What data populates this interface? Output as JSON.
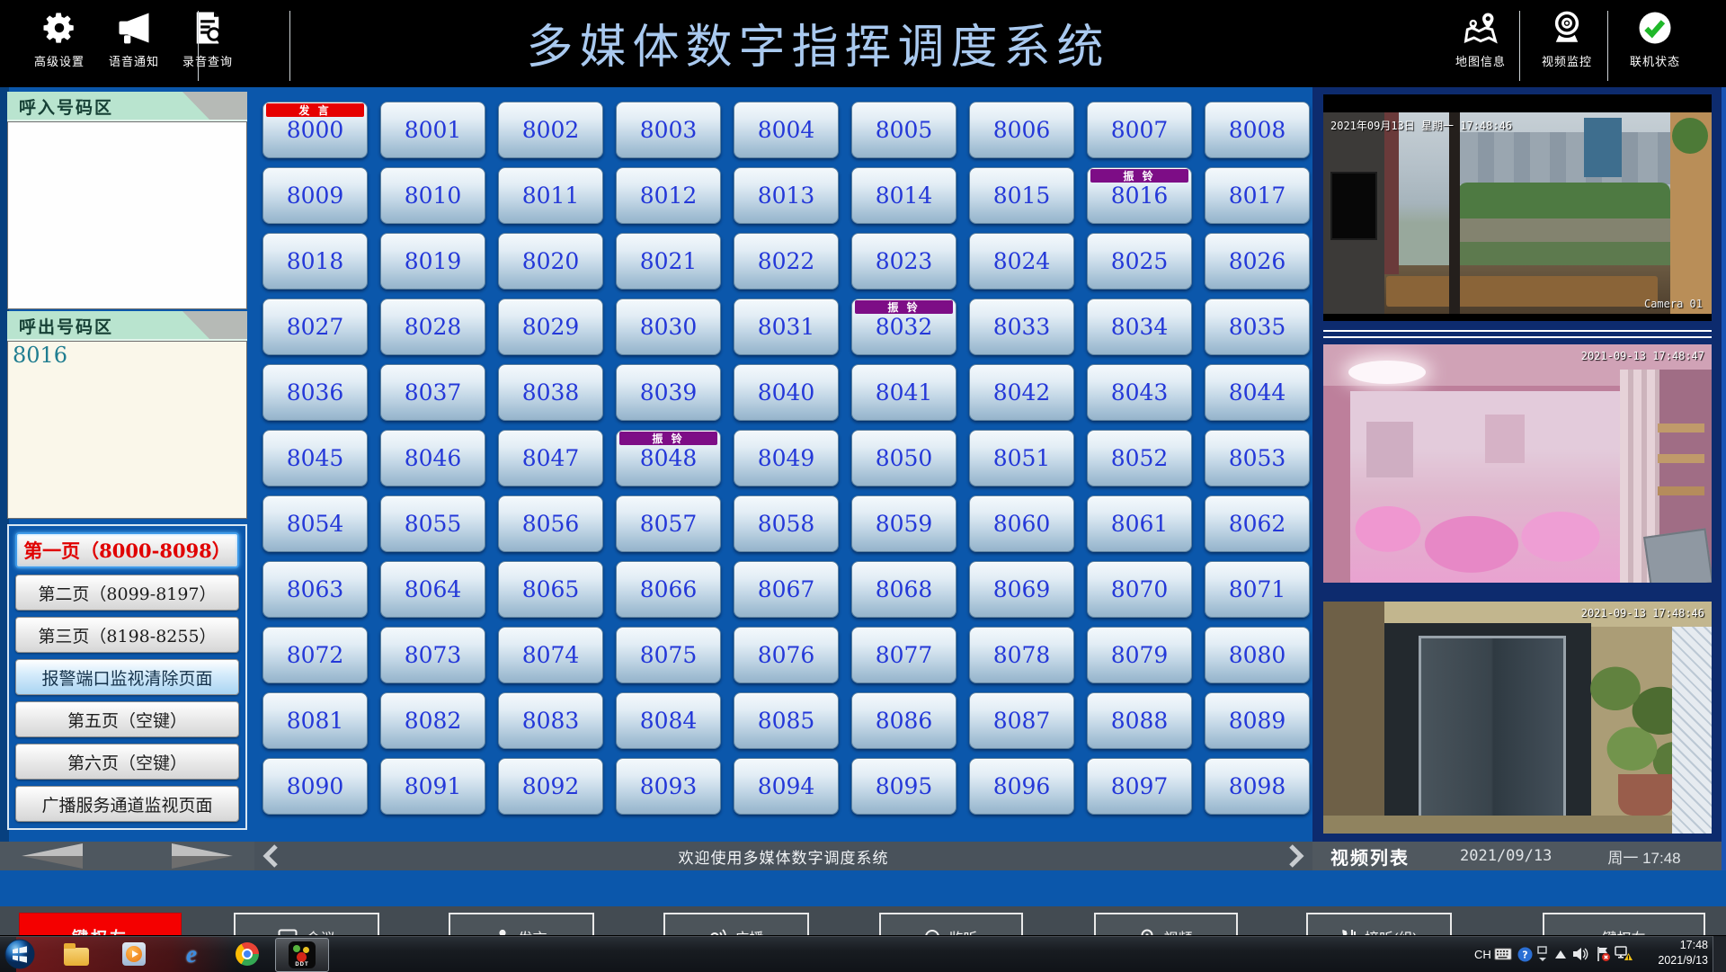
{
  "header": {
    "title": "多媒体数字指挥调度系统",
    "left_tools": [
      {
        "label": "高级设置",
        "icon": "gear-icon"
      },
      {
        "label": "语音通知",
        "icon": "megaphone-icon"
      },
      {
        "label": "录音查询",
        "icon": "recording-search-icon"
      }
    ],
    "right_tools": [
      {
        "label": "地图信息",
        "icon": "map-pins-icon"
      },
      {
        "label": "视频监控",
        "icon": "webcam-icon"
      },
      {
        "label": "联机状态",
        "icon": "online-check-icon"
      }
    ]
  },
  "sidebar": {
    "incoming_title": "呼入号码区",
    "outgoing_title": "呼出号码区",
    "outgoing_numbers": [
      "8016"
    ],
    "pages": [
      {
        "label": "第一页（8000-8098）",
        "state": "selected"
      },
      {
        "label": "第二页（8099-8197）",
        "state": "normal"
      },
      {
        "label": "第三页（8198-8255）",
        "state": "normal"
      },
      {
        "label": "报警端口监视清除页面",
        "state": "alarm"
      },
      {
        "label": "第五页（空键）",
        "state": "normal"
      },
      {
        "label": "第六页（空键）",
        "state": "normal"
      },
      {
        "label": "广播服务通道监视页面",
        "state": "normal"
      }
    ]
  },
  "grid": {
    "start": 8000,
    "count": 99,
    "columns": 9,
    "badges": {
      "8000": {
        "text": "发 言",
        "type": "speaking"
      },
      "8016": {
        "text": "振 铃",
        "type": "ringing"
      },
      "8032": {
        "text": "振 铃",
        "type": "ringing"
      },
      "8048": {
        "text": "振 铃",
        "type": "ringing"
      }
    },
    "colors": {
      "speaking": "#e60000",
      "ringing": "#7d0d86",
      "number": "#2438d8"
    }
  },
  "status_bar": {
    "message": "欢迎使用多媒体数字调度系统"
  },
  "video_panel": {
    "feeds": [
      {
        "timestamp": "2021年09月13日 星期一 17:48:46",
        "label": "Camera 01"
      },
      {
        "timestamp": "2021-09-13 17:48:47",
        "label": ""
      },
      {
        "timestamp": "2021-09-13 17:48:46",
        "label": ""
      }
    ],
    "footer": {
      "title": "视频列表",
      "date": "2021/09/13",
      "weekday_time": "周一  17:48"
    }
  },
  "bottom_bar": {
    "buttons": [
      {
        "label": "键权左",
        "style": "red",
        "icon": ""
      },
      {
        "label": "会议",
        "style": "outline",
        "icon": "monitor-icon"
      },
      {
        "label": "发言",
        "style": "outline",
        "icon": "person-icon"
      },
      {
        "label": "广播",
        "style": "outline",
        "icon": "broadcast-icon"
      },
      {
        "label": "监听",
        "style": "outline",
        "icon": "headset-icon"
      },
      {
        "label": "视频",
        "style": "outline",
        "icon": "webcam-icon"
      },
      {
        "label": "接听(组)",
        "style": "outline",
        "icon": "phone-icon"
      },
      {
        "label": "键权右",
        "style": "outline",
        "icon": ""
      }
    ]
  },
  "taskbar": {
    "language": "CH",
    "time": "17:48",
    "date": "2021/9/13"
  }
}
